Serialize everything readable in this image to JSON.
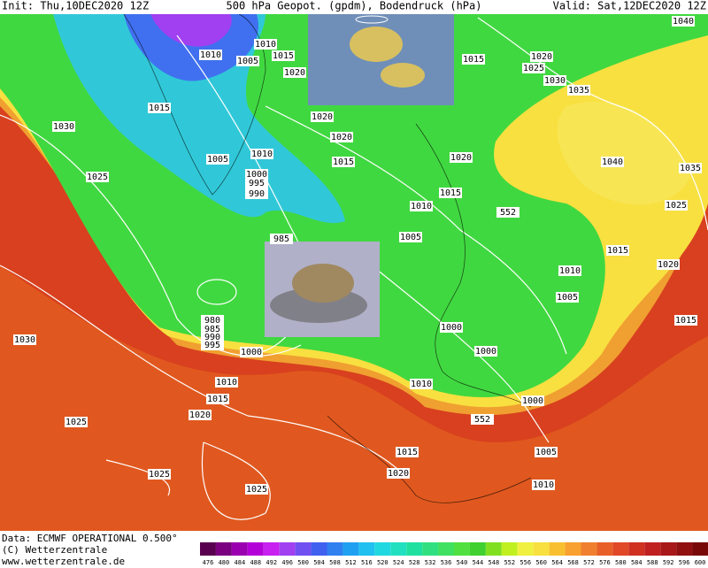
{
  "header": {
    "init": "Init: Thu,10DEC2020 12Z",
    "title": "500 hPa Geopot. (gpdm), Bodendruck (hPa)",
    "valid": "Valid: Sat,12DEC2020 12Z"
  },
  "isobar_labels": [
    "1010",
    "1005",
    "1015",
    "1010",
    "1020",
    "1015",
    "1030",
    "1005",
    "1010",
    "1000",
    "995",
    "990",
    "1025",
    "1020",
    "1020",
    "1015",
    "985",
    "980",
    "985",
    "990",
    "995",
    "1000",
    "1030",
    "1010",
    "1015",
    "1020",
    "1025",
    "1025",
    "1025",
    "1015",
    "1020",
    "1010",
    "552",
    "1000",
    "1000",
    "1000",
    "1005",
    "1010",
    "1015",
    "1020",
    "1015",
    "1025",
    "1035",
    "1040",
    "552",
    "1020",
    "1015",
    "1010",
    "1005",
    "1035",
    "1030",
    "1025",
    "1020",
    "1015",
    "1040",
    "1005",
    "1010"
  ],
  "footer": {
    "data": "Data: ECMWF OPERATIONAL 0.500°",
    "copyright": "(C) Wetterzentrale",
    "url": "www.wetterzentrale.de"
  },
  "scale": {
    "values": [
      476,
      480,
      484,
      488,
      492,
      496,
      500,
      504,
      508,
      512,
      516,
      520,
      524,
      528,
      532,
      536,
      540,
      544,
      548,
      552,
      556,
      560,
      564,
      568,
      572,
      576,
      580,
      584,
      588,
      592,
      596,
      600
    ],
    "colors": [
      "#5a0050",
      "#7a0080",
      "#9a00b0",
      "#b400d8",
      "#c820f0",
      "#a040f0",
      "#7050f0",
      "#4060f0",
      "#3080f0",
      "#20a0f0",
      "#20c0f0",
      "#20d8e0",
      "#20e0c0",
      "#20e0a0",
      "#30e080",
      "#40e060",
      "#50e040",
      "#40d030",
      "#80e020",
      "#c0f020",
      "#f0f040",
      "#f8e040",
      "#f8c030",
      "#f8a030",
      "#f08030",
      "#e86028",
      "#e04828",
      "#d03020",
      "#c02020",
      "#a81818",
      "#901010",
      "#780808"
    ]
  }
}
